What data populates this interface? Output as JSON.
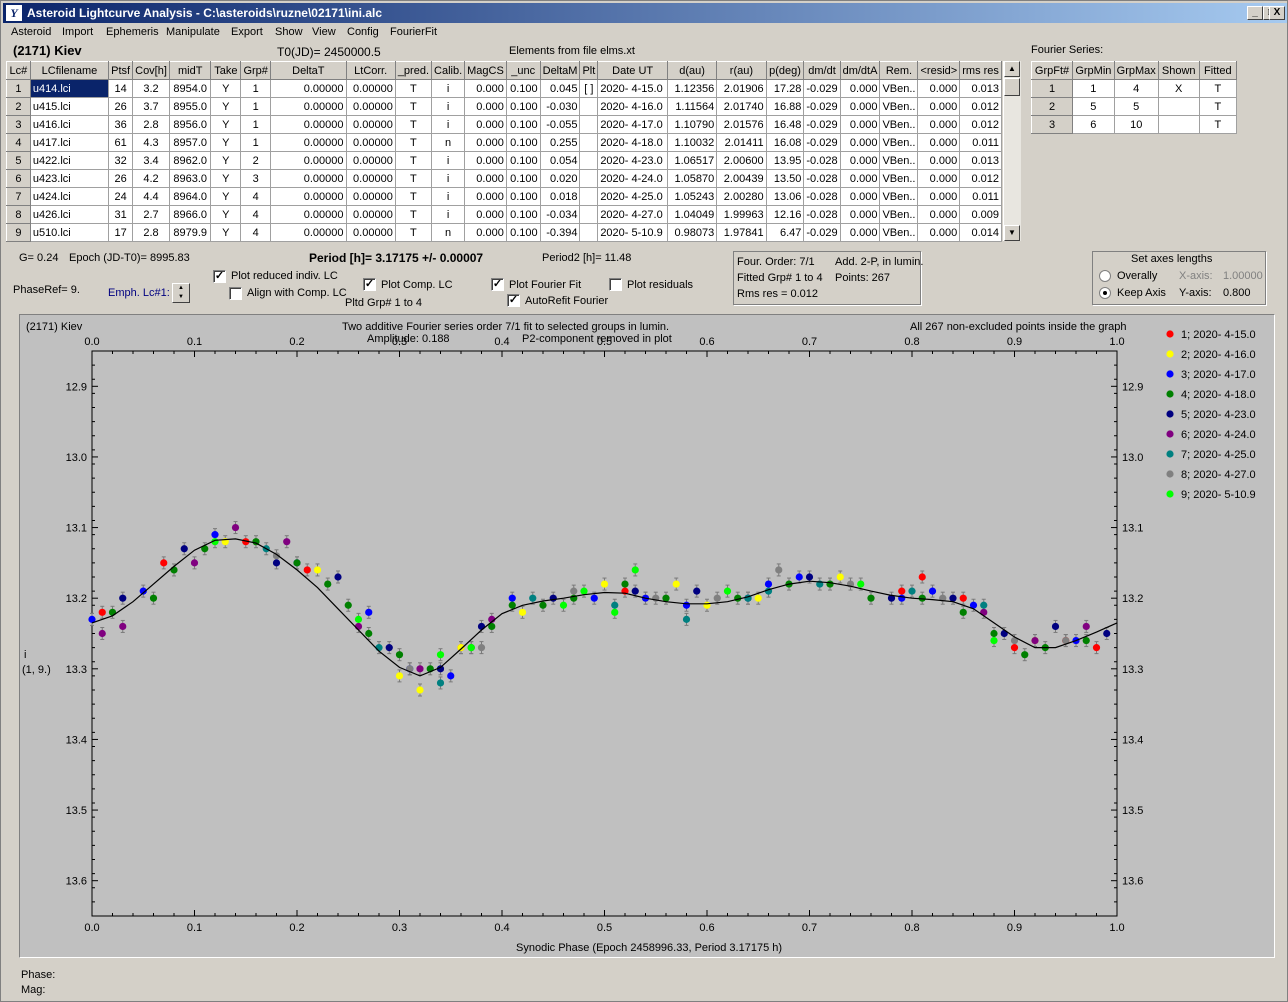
{
  "window": {
    "title": "Asteroid Lightcurve Analysis - C:\\asteroids\\ruzne\\02171\\ini.alc",
    "min": "_",
    "max": "□",
    "close": "X"
  },
  "menu": [
    "Asteroid",
    "Import",
    "Ephemeris",
    "Manipulate",
    "Export",
    "Show",
    "View",
    "Config",
    "FourierFit"
  ],
  "header": {
    "asteroid": "(2171) Kiev",
    "t0": "T0(JD)= 2450000.5",
    "elements": "Elements from file elms.xt",
    "fourier_title": "Fourier Series:"
  },
  "lc_table": {
    "columns": [
      "Lc#",
      "LCfilename",
      "Ptsf",
      "Cov[h]",
      "midT",
      "Take",
      "Grp#",
      "DeltaT",
      "LtCorr.",
      "_pred.",
      "Calib.",
      "MagCS",
      "_unc",
      "DeltaM",
      "Plt",
      "Date UT",
      "d(au)",
      "r(au)",
      "p(deg)",
      "dm/dt",
      "dm/dtA",
      "Rem.",
      "<resid>",
      "rms res"
    ],
    "rows": [
      [
        "1",
        "u414.lci",
        "14",
        "3.2",
        "8954.0",
        "Y",
        "1",
        "0.00000",
        "0.00000",
        "T",
        "i",
        "0.000",
        "0.100",
        "0.045",
        "[ ]",
        "2020- 4-15.0",
        "1.12356",
        "2.01906",
        "17.28",
        "-0.029",
        "0.000",
        "VBen..",
        "0.000",
        "0.013"
      ],
      [
        "2",
        "u415.lci",
        "26",
        "3.7",
        "8955.0",
        "Y",
        "1",
        "0.00000",
        "0.00000",
        "T",
        "i",
        "0.000",
        "0.100",
        "-0.030",
        "",
        "2020- 4-16.0",
        "1.11564",
        "2.01740",
        "16.88",
        "-0.029",
        "0.000",
        "VBen..",
        "0.000",
        "0.012"
      ],
      [
        "3",
        "u416.lci",
        "36",
        "2.8",
        "8956.0",
        "Y",
        "1",
        "0.00000",
        "0.00000",
        "T",
        "i",
        "0.000",
        "0.100",
        "-0.055",
        "",
        "2020- 4-17.0",
        "1.10790",
        "2.01576",
        "16.48",
        "-0.029",
        "0.000",
        "VBen..",
        "0.000",
        "0.012"
      ],
      [
        "4",
        "u417.lci",
        "61",
        "4.3",
        "8957.0",
        "Y",
        "1",
        "0.00000",
        "0.00000",
        "T",
        "n",
        "0.000",
        "0.100",
        "0.255",
        "",
        "2020- 4-18.0",
        "1.10032",
        "2.01411",
        "16.08",
        "-0.029",
        "0.000",
        "VBen..",
        "0.000",
        "0.011"
      ],
      [
        "5",
        "u422.lci",
        "32",
        "3.4",
        "8962.0",
        "Y",
        "2",
        "0.00000",
        "0.00000",
        "T",
        "i",
        "0.000",
        "0.100",
        "0.054",
        "",
        "2020- 4-23.0",
        "1.06517",
        "2.00600",
        "13.95",
        "-0.028",
        "0.000",
        "VBen..",
        "0.000",
        "0.013"
      ],
      [
        "6",
        "u423.lci",
        "26",
        "4.2",
        "8963.0",
        "Y",
        "3",
        "0.00000",
        "0.00000",
        "T",
        "i",
        "0.000",
        "0.100",
        "0.020",
        "",
        "2020- 4-24.0",
        "1.05870",
        "2.00439",
        "13.50",
        "-0.028",
        "0.000",
        "VBen..",
        "0.000",
        "0.012"
      ],
      [
        "7",
        "u424.lci",
        "24",
        "4.4",
        "8964.0",
        "Y",
        "4",
        "0.00000",
        "0.00000",
        "T",
        "i",
        "0.000",
        "0.100",
        "0.018",
        "",
        "2020- 4-25.0",
        "1.05243",
        "2.00280",
        "13.06",
        "-0.028",
        "0.000",
        "VBen..",
        "0.000",
        "0.011"
      ],
      [
        "8",
        "u426.lci",
        "31",
        "2.7",
        "8966.0",
        "Y",
        "4",
        "0.00000",
        "0.00000",
        "T",
        "i",
        "0.000",
        "0.100",
        "-0.034",
        "",
        "2020- 4-27.0",
        "1.04049",
        "1.99963",
        "12.16",
        "-0.028",
        "0.000",
        "VBen..",
        "0.000",
        "0.009"
      ],
      [
        "9",
        "u510.lci",
        "17",
        "2.8",
        "8979.9",
        "Y",
        "4",
        "0.00000",
        "0.00000",
        "T",
        "n",
        "0.000",
        "0.100",
        "-0.394",
        "",
        "2020- 5-10.9",
        "0.98073",
        "1.97841",
        "6.47",
        "-0.029",
        "0.000",
        "VBen..",
        "0.000",
        "0.014"
      ]
    ]
  },
  "fourier_table": {
    "columns": [
      "GrpFt#",
      "GrpMin",
      "GrpMax",
      "Shown",
      "Fitted"
    ],
    "rows": [
      [
        "1",
        "1",
        "4",
        "X",
        "T"
      ],
      [
        "2",
        "5",
        "5",
        "",
        "T"
      ],
      [
        "3",
        "6",
        "10",
        "",
        "T"
      ]
    ]
  },
  "info": {
    "g": "G= 0.24",
    "epoch": "Epoch (JD-T0)= 8995.83",
    "period": "Period [h]= 3.17175 +/- 0.00007",
    "period2": "Period2 [h]= 11.48",
    "phaseref": "PhaseRef= 9.",
    "emph": "Emph. Lc#1:",
    "plot_reduced": "Plot reduced indiv. LC",
    "align": "Align with Comp. LC",
    "plot_comp": "Plot Comp. LC",
    "pltd_grp": "Pltd Grp#  1   to   4",
    "plot_fourier": "Plot Fourier Fit",
    "autorefit": "AutoRefit Fourier",
    "plot_residuals": "Plot residuals",
    "four_order": "Four. Order:  7/1",
    "add2p": "Add. 2-P, in lumin.",
    "fitted_grp": "Fitted Grp# 1 to 4",
    "points": "Points: 267",
    "rms": "Rms res      = 0.012",
    "axes_title": "Set axes lengths",
    "overally": "Overally",
    "keep_axis": "Keep Axis",
    "xaxis_label": "X-axis:",
    "xaxis_val": "1.00000",
    "yaxis_label": "Y-axis:",
    "yaxis_val": "0.800"
  },
  "checks": {
    "plot_reduced": true,
    "align": false,
    "plot_comp": true,
    "plot_fourier": true,
    "autorefit": true,
    "plot_residuals": false
  },
  "plot": {
    "corner": "(2171) Kiev",
    "line1": "Two additive Fourier series order 7/1 fit to selected groups in lumin.",
    "line2a": "Amplitude: 0.188",
    "line2b": "P2-component removed in plot",
    "right_note": "All 267 non-excluded points inside the graph",
    "ylabel1": "i",
    "ylabel2": "(1, 9.)",
    "xlabel": "Synodic Phase (Epoch 2458996.33, Period 3.17175 h)",
    "phase_label": "Phase:",
    "mag_label": "Mag:"
  },
  "chart_data": {
    "type": "scatter",
    "title": "Two additive Fourier series order 7/1 fit to selected groups in lumin.",
    "xlabel": "Synodic Phase (Epoch 2458996.33, Period 3.17175 h)",
    "ylabel": "i (1, 9.)",
    "xlim": [
      0,
      1
    ],
    "ylim": [
      13.65,
      12.85
    ],
    "y_inverted": true,
    "x_ticks": [
      "0.0",
      "0.1",
      "0.2",
      "0.3",
      "0.4",
      "0.5",
      "0.6",
      "0.7",
      "0.8",
      "0.9",
      "1.0"
    ],
    "y_ticks": [
      "12.9",
      "13.0",
      "13.1",
      "13.2",
      "13.3",
      "13.4",
      "13.5",
      "13.6"
    ],
    "grid": false,
    "legend_position": "right",
    "fit_curve": [
      [
        0.0,
        13.235
      ],
      [
        0.02,
        13.225
      ],
      [
        0.04,
        13.205
      ],
      [
        0.06,
        13.18
      ],
      [
        0.08,
        13.155
      ],
      [
        0.1,
        13.132
      ],
      [
        0.12,
        13.118
      ],
      [
        0.14,
        13.116
      ],
      [
        0.16,
        13.122
      ],
      [
        0.18,
        13.138
      ],
      [
        0.2,
        13.16
      ],
      [
        0.22,
        13.185
      ],
      [
        0.24,
        13.215
      ],
      [
        0.26,
        13.245
      ],
      [
        0.28,
        13.275
      ],
      [
        0.3,
        13.298
      ],
      [
        0.32,
        13.31
      ],
      [
        0.34,
        13.298
      ],
      [
        0.36,
        13.272
      ],
      [
        0.38,
        13.245
      ],
      [
        0.4,
        13.222
      ],
      [
        0.42,
        13.21
      ],
      [
        0.44,
        13.204
      ],
      [
        0.46,
        13.2
      ],
      [
        0.48,
        13.195
      ],
      [
        0.5,
        13.192
      ],
      [
        0.52,
        13.193
      ],
      [
        0.54,
        13.2
      ],
      [
        0.56,
        13.205
      ],
      [
        0.58,
        13.208
      ],
      [
        0.6,
        13.208
      ],
      [
        0.62,
        13.205
      ],
      [
        0.64,
        13.198
      ],
      [
        0.66,
        13.188
      ],
      [
        0.68,
        13.18
      ],
      [
        0.7,
        13.176
      ],
      [
        0.72,
        13.178
      ],
      [
        0.74,
        13.183
      ],
      [
        0.76,
        13.19
      ],
      [
        0.78,
        13.196
      ],
      [
        0.8,
        13.2
      ],
      [
        0.82,
        13.202
      ],
      [
        0.84,
        13.205
      ],
      [
        0.86,
        13.215
      ],
      [
        0.88,
        13.235
      ],
      [
        0.9,
        13.255
      ],
      [
        0.92,
        13.27
      ],
      [
        0.94,
        13.27
      ],
      [
        0.96,
        13.26
      ],
      [
        0.98,
        13.248
      ],
      [
        1.0,
        13.235
      ]
    ],
    "series": [
      {
        "name": "1; 2020- 4-15.0",
        "color": "#ff0000",
        "points": [
          [
            0.01,
            13.22
          ],
          [
            0.07,
            13.15
          ],
          [
            0.15,
            13.12
          ],
          [
            0.21,
            13.16
          ],
          [
            0.36,
            13.27
          ],
          [
            0.52,
            13.19
          ],
          [
            0.79,
            13.19
          ],
          [
            0.81,
            13.17
          ],
          [
            0.85,
            13.2
          ],
          [
            0.9,
            13.27
          ],
          [
            0.95,
            13.26
          ],
          [
            0.98,
            13.27
          ]
        ]
      },
      {
        "name": "2; 2020- 4-16.0",
        "color": "#ffff00",
        "points": [
          [
            0.13,
            13.12
          ],
          [
            0.22,
            13.16
          ],
          [
            0.3,
            13.31
          ],
          [
            0.32,
            13.33
          ],
          [
            0.36,
            13.27
          ],
          [
            0.42,
            13.22
          ],
          [
            0.5,
            13.18
          ],
          [
            0.54,
            13.2
          ],
          [
            0.57,
            13.18
          ],
          [
            0.6,
            13.21
          ],
          [
            0.65,
            13.2
          ],
          [
            0.73,
            13.17
          ],
          [
            0.92,
            13.26
          ]
        ]
      },
      {
        "name": "3; 2020- 4-17.0",
        "color": "#0000ff",
        "points": [
          [
            0.0,
            13.23
          ],
          [
            0.05,
            13.19
          ],
          [
            0.12,
            13.11
          ],
          [
            0.2,
            13.15
          ],
          [
            0.27,
            13.22
          ],
          [
            0.31,
            13.3
          ],
          [
            0.35,
            13.31
          ],
          [
            0.41,
            13.2
          ],
          [
            0.49,
            13.2
          ],
          [
            0.54,
            13.2
          ],
          [
            0.58,
            13.21
          ],
          [
            0.66,
            13.18
          ],
          [
            0.69,
            13.17
          ],
          [
            0.79,
            13.2
          ],
          [
            0.82,
            13.19
          ],
          [
            0.86,
            13.21
          ],
          [
            0.96,
            13.26
          ]
        ]
      },
      {
        "name": "4; 2020- 4-18.0",
        "color": "#008000",
        "points": [
          [
            0.02,
            13.22
          ],
          [
            0.06,
            13.2
          ],
          [
            0.08,
            13.16
          ],
          [
            0.11,
            13.13
          ],
          [
            0.16,
            13.12
          ],
          [
            0.2,
            13.15
          ],
          [
            0.23,
            13.18
          ],
          [
            0.25,
            13.21
          ],
          [
            0.27,
            13.25
          ],
          [
            0.3,
            13.28
          ],
          [
            0.33,
            13.3
          ],
          [
            0.37,
            13.27
          ],
          [
            0.39,
            13.24
          ],
          [
            0.41,
            13.21
          ],
          [
            0.44,
            13.21
          ],
          [
            0.47,
            13.2
          ],
          [
            0.52,
            13.18
          ],
          [
            0.56,
            13.2
          ],
          [
            0.63,
            13.2
          ],
          [
            0.68,
            13.18
          ],
          [
            0.72,
            13.18
          ],
          [
            0.76,
            13.2
          ],
          [
            0.81,
            13.2
          ],
          [
            0.85,
            13.22
          ],
          [
            0.88,
            13.25
          ],
          [
            0.91,
            13.28
          ],
          [
            0.93,
            13.27
          ],
          [
            0.97,
            13.26
          ]
        ]
      },
      {
        "name": "5; 2020- 4-23.0",
        "color": "#000080",
        "points": [
          [
            0.03,
            13.2
          ],
          [
            0.09,
            13.13
          ],
          [
            0.18,
            13.15
          ],
          [
            0.24,
            13.17
          ],
          [
            0.29,
            13.27
          ],
          [
            0.34,
            13.3
          ],
          [
            0.38,
            13.24
          ],
          [
            0.45,
            13.2
          ],
          [
            0.53,
            13.19
          ],
          [
            0.59,
            13.19
          ],
          [
            0.64,
            13.2
          ],
          [
            0.7,
            13.17
          ],
          [
            0.78,
            13.2
          ],
          [
            0.84,
            13.2
          ],
          [
            0.89,
            13.25
          ],
          [
            0.94,
            13.24
          ],
          [
            0.99,
            13.25
          ]
        ]
      },
      {
        "name": "6; 2020- 4-24.0",
        "color": "#800080",
        "points": [
          [
            0.01,
            13.25
          ],
          [
            0.03,
            13.24
          ],
          [
            0.1,
            13.15
          ],
          [
            0.14,
            13.1
          ],
          [
            0.19,
            13.12
          ],
          [
            0.26,
            13.24
          ],
          [
            0.32,
            13.3
          ],
          [
            0.39,
            13.23
          ],
          [
            0.87,
            13.22
          ],
          [
            0.92,
            13.26
          ],
          [
            0.97,
            13.24
          ]
        ]
      },
      {
        "name": "7; 2020- 4-25.0",
        "color": "#008080",
        "points": [
          [
            0.17,
            13.13
          ],
          [
            0.28,
            13.27
          ],
          [
            0.34,
            13.32
          ],
          [
            0.43,
            13.2
          ],
          [
            0.51,
            13.21
          ],
          [
            0.58,
            13.23
          ],
          [
            0.64,
            13.2
          ],
          [
            0.66,
            13.19
          ],
          [
            0.71,
            13.18
          ],
          [
            0.8,
            13.19
          ],
          [
            0.87,
            13.21
          ]
        ]
      },
      {
        "name": "8; 2020- 4-27.0",
        "color": "#808080",
        "points": [
          [
            0.18,
            13.14
          ],
          [
            0.31,
            13.3
          ],
          [
            0.38,
            13.27
          ],
          [
            0.47,
            13.19
          ],
          [
            0.55,
            13.2
          ],
          [
            0.61,
            13.2
          ],
          [
            0.67,
            13.16
          ],
          [
            0.74,
            13.18
          ],
          [
            0.83,
            13.2
          ],
          [
            0.9,
            13.26
          ],
          [
            0.95,
            13.26
          ]
        ]
      },
      {
        "name": "9; 2020- 5-10.9",
        "color": "#00ff00",
        "points": [
          [
            0.12,
            13.12
          ],
          [
            0.26,
            13.23
          ],
          [
            0.34,
            13.28
          ],
          [
            0.37,
            13.27
          ],
          [
            0.46,
            13.21
          ],
          [
            0.48,
            13.19
          ],
          [
            0.51,
            13.22
          ],
          [
            0.53,
            13.16
          ],
          [
            0.62,
            13.19
          ],
          [
            0.75,
            13.18
          ],
          [
            0.88,
            13.26
          ]
        ]
      }
    ]
  }
}
